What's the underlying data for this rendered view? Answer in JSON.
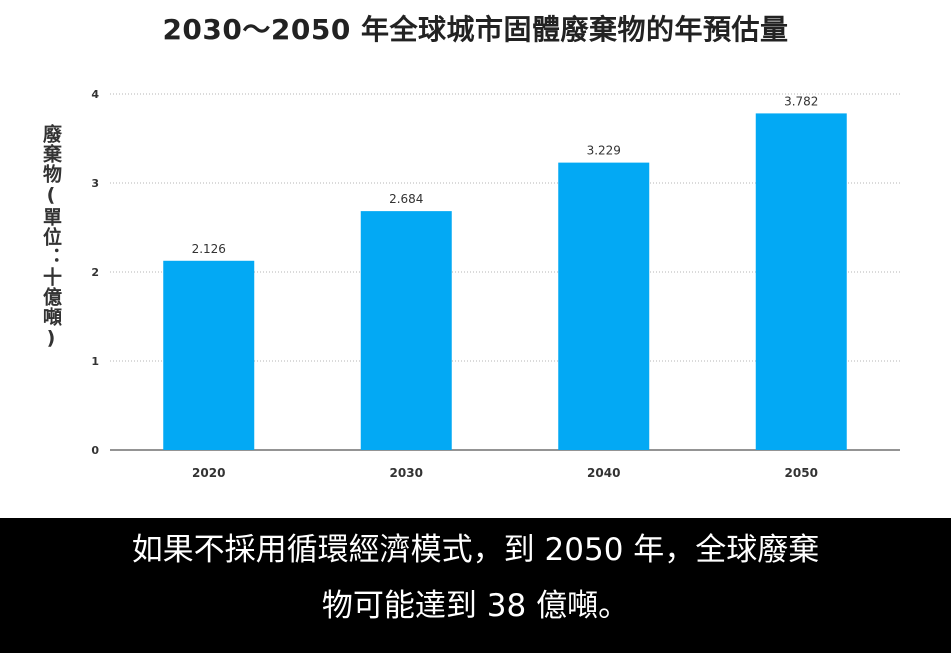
{
  "chart_data": {
    "type": "bar",
    "title": "2030～2050 年全球城市固體廢棄物的年預估量",
    "ylabel": "廢棄物(單位：十億噸)",
    "xlabel": "",
    "categories": [
      "2020",
      "2030",
      "2040",
      "2050"
    ],
    "values": [
      2.126,
      2.684,
      3.229,
      3.782
    ],
    "value_labels": [
      "2.126",
      "2.684",
      "3.229",
      "3.782"
    ],
    "ylim": [
      0,
      4
    ],
    "yticks": [
      0,
      1,
      2,
      3,
      4
    ],
    "grid": "horizontal dotted",
    "bar_color": "#03a9f4"
  },
  "caption": {
    "line1": "如果不採用循環經濟模式，到 2050 年，全球廢棄",
    "line2": "物可能達到 38 億噸。"
  }
}
